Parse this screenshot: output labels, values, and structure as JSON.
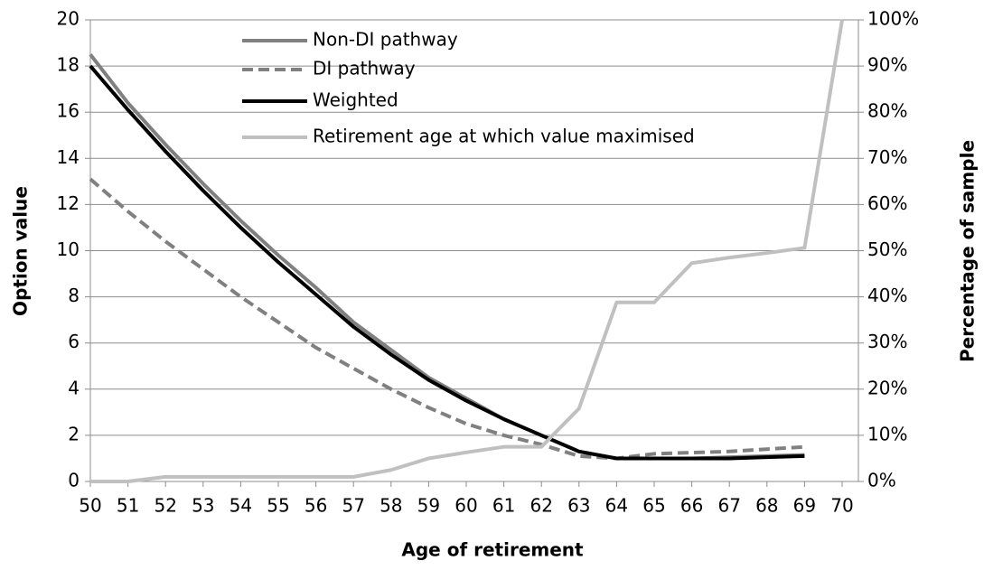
{
  "chart_data": {
    "type": "line",
    "x_label": "Age of retirement",
    "y_label": "Option value",
    "y2_label": "Percentage of sample",
    "x": [
      50,
      51,
      52,
      53,
      54,
      55,
      56,
      57,
      58,
      59,
      60,
      61,
      62,
      63,
      64,
      65,
      66,
      67,
      68,
      69,
      70
    ],
    "xlim": [
      50,
      70
    ],
    "xticks": [
      50,
      51,
      52,
      53,
      54,
      55,
      56,
      57,
      58,
      59,
      60,
      61,
      62,
      63,
      64,
      65,
      66,
      67,
      68,
      69,
      70
    ],
    "ylim": [
      0,
      20
    ],
    "yticks": [
      0,
      2,
      4,
      6,
      8,
      10,
      12,
      14,
      16,
      18,
      20
    ],
    "y2lim": [
      0,
      100
    ],
    "y2ticks": [
      {
        "value": 0,
        "label": "0%"
      },
      {
        "value": 10,
        "label": "10%"
      },
      {
        "value": 20,
        "label": "20%"
      },
      {
        "value": 30,
        "label": "30%"
      },
      {
        "value": 40,
        "label": "40%"
      },
      {
        "value": 50,
        "label": "50%"
      },
      {
        "value": 60,
        "label": "60%"
      },
      {
        "value": 70,
        "label": "70%"
      },
      {
        "value": 80,
        "label": "80%"
      },
      {
        "value": 90,
        "label": "90%"
      },
      {
        "value": 100,
        "label": "100%"
      }
    ],
    "grid": true,
    "legend": "top",
    "series": [
      {
        "name": "Non-DI pathway",
        "color": "#808080",
        "dash": false,
        "values": [
          18.5,
          16.4,
          14.6,
          12.9,
          11.3,
          9.8,
          8.4,
          6.9,
          5.7,
          4.5,
          3.6,
          2.7,
          2.0,
          1.3,
          1.0,
          1.0,
          1.0,
          1.05,
          1.1,
          1.15,
          null
        ]
      },
      {
        "name": "DI pathway",
        "color": "#808080",
        "dash": true,
        "values": [
          13.1,
          11.7,
          10.4,
          9.2,
          8.0,
          6.9,
          5.8,
          4.9,
          4.0,
          3.2,
          2.5,
          2.0,
          1.6,
          1.1,
          1.0,
          1.2,
          1.25,
          1.3,
          1.4,
          1.5,
          null
        ]
      },
      {
        "name": "Weighted",
        "color": "#000000",
        "dash": false,
        "values": [
          18.0,
          16.1,
          14.3,
          12.6,
          11.0,
          9.5,
          8.1,
          6.7,
          5.5,
          4.4,
          3.5,
          2.7,
          2.0,
          1.3,
          1.0,
          1.0,
          1.0,
          1.0,
          1.05,
          1.1,
          null
        ]
      },
      {
        "name": "Retirement age at which value maximised",
        "color": "#c0c0c0",
        "dash": false,
        "axis": "y2",
        "values": [
          0,
          0,
          1,
          1,
          1,
          1,
          1,
          1,
          2.5,
          5,
          6.3,
          7.5,
          7.5,
          15.8,
          38.8,
          38.8,
          47.3,
          48.5,
          49.5,
          50.6,
          100
        ]
      }
    ]
  }
}
